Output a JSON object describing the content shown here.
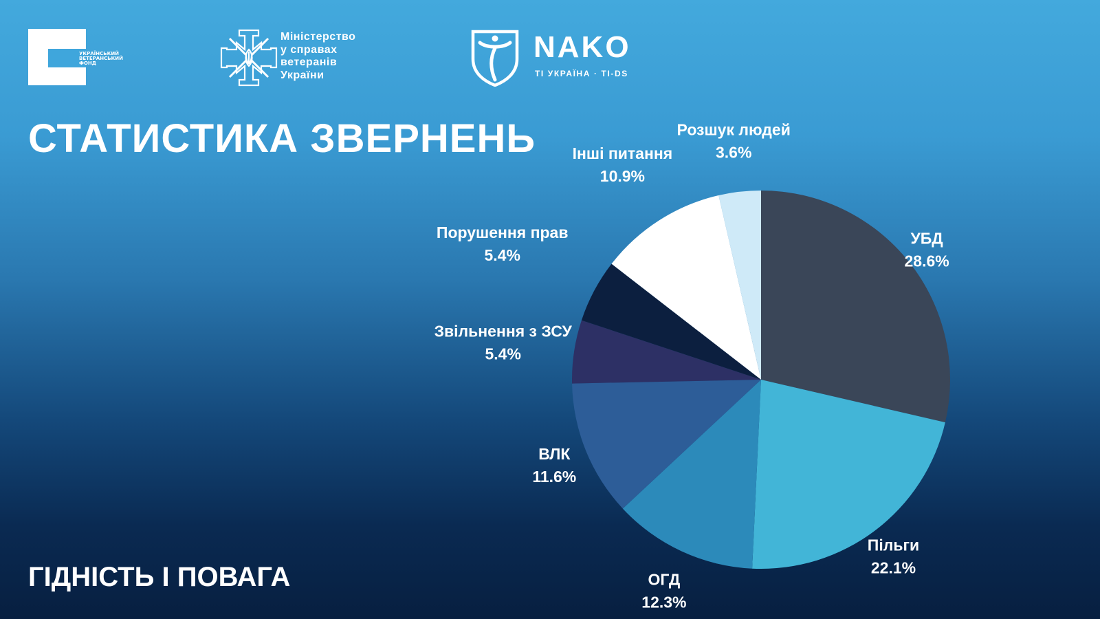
{
  "logos": {
    "veteran_fund": "Український ветеранський фонд",
    "ministry": [
      "Міністерство",
      "у справах",
      "ветеранів",
      "України"
    ],
    "nako_name": "NAKO",
    "nako_subtitle": "TI УКРАЇНА · TI-DS"
  },
  "title": "СТАТИСТИКА ЗВЕРНЕНЬ",
  "tagline": "ГІДНІСТЬ І ПОВАГА",
  "colors": {
    "background_top": "#43a9dd",
    "background_bottom": "#071f40"
  },
  "chart_data": {
    "type": "pie",
    "title": "СТАТИСТИКА ЗВЕРНЕНЬ",
    "start_angle_deg": 0,
    "direction": "clockwise",
    "legend": "none",
    "slices": [
      {
        "label": "УБД",
        "value": 28.6,
        "value_label": "28.6%",
        "color": "#3a4658"
      },
      {
        "label": "Пільги",
        "value": 22.1,
        "value_label": "22.1%",
        "color": "#42b5d7"
      },
      {
        "label": "ОГД",
        "value": 12.3,
        "value_label": "12.3%",
        "color": "#2c8aba"
      },
      {
        "label": "ВЛК",
        "value": 11.6,
        "value_label": "11.6%",
        "color": "#2d5d98"
      },
      {
        "label": "Звільнення з ЗСУ",
        "value": 5.4,
        "value_label": "5.4%",
        "color": "#2d3065"
      },
      {
        "label": "Порушення прав",
        "value": 5.4,
        "value_label": "5.4%",
        "color": "#0c1f3f"
      },
      {
        "label": "Інші питання",
        "value": 10.9,
        "value_label": "10.9%",
        "color": "#ffffff"
      },
      {
        "label": "Розшук людей",
        "value": 3.6,
        "value_label": "3.6%",
        "color": "#cfeaf8"
      }
    ]
  }
}
